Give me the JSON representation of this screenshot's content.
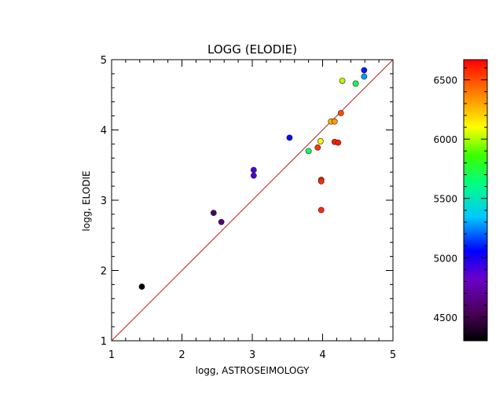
{
  "chart_data": {
    "type": "scatter",
    "title": "LOGG (ELODIE)",
    "xlabel": "logg, ASTROSEIMOLOGY",
    "ylabel": "logg, ELODIE",
    "xlim": [
      1,
      5
    ],
    "ylim": [
      1,
      5
    ],
    "xticks": [
      "1",
      "2",
      "3",
      "4",
      "5"
    ],
    "yticks": [
      "1",
      "2",
      "3",
      "4",
      "5"
    ],
    "reference_line": "y = x",
    "reference_line_color": "#b22222",
    "colorbar": {
      "range": [
        4300,
        6670
      ],
      "ticks": [
        "4500",
        "5000",
        "5500",
        "6000",
        "6500"
      ],
      "tick_values": [
        4500,
        5000,
        5500,
        6000,
        6500
      ]
    },
    "points": [
      {
        "x": 1.43,
        "y": 1.77,
        "c": 4300
      },
      {
        "x": 2.45,
        "y": 2.82,
        "c": 4560
      },
      {
        "x": 2.56,
        "y": 2.69,
        "c": 4620
      },
      {
        "x": 3.02,
        "y": 3.43,
        "c": 4880
      },
      {
        "x": 3.02,
        "y": 3.35,
        "c": 4880
      },
      {
        "x": 3.53,
        "y": 3.89,
        "c": 5080
      },
      {
        "x": 3.8,
        "y": 3.7,
        "c": 5680
      },
      {
        "x": 3.93,
        "y": 3.75,
        "c": 6550
      },
      {
        "x": 3.97,
        "y": 3.84,
        "c": 6120
      },
      {
        "x": 3.98,
        "y": 3.29,
        "c": 6580
      },
      {
        "x": 3.98,
        "y": 3.27,
        "c": 6580
      },
      {
        "x": 3.98,
        "y": 2.86,
        "c": 6580
      },
      {
        "x": 4.12,
        "y": 4.12,
        "c": 6280
      },
      {
        "x": 4.17,
        "y": 4.12,
        "c": 6320
      },
      {
        "x": 4.17,
        "y": 3.83,
        "c": 6600
      },
      {
        "x": 4.22,
        "y": 3.82,
        "c": 6620
      },
      {
        "x": 4.26,
        "y": 4.24,
        "c": 6500
      },
      {
        "x": 4.28,
        "y": 4.7,
        "c": 6000
      },
      {
        "x": 4.47,
        "y": 4.66,
        "c": 5700
      },
      {
        "x": 4.59,
        "y": 4.85,
        "c": 5100
      },
      {
        "x": 4.59,
        "y": 4.76,
        "c": 5280
      }
    ]
  }
}
